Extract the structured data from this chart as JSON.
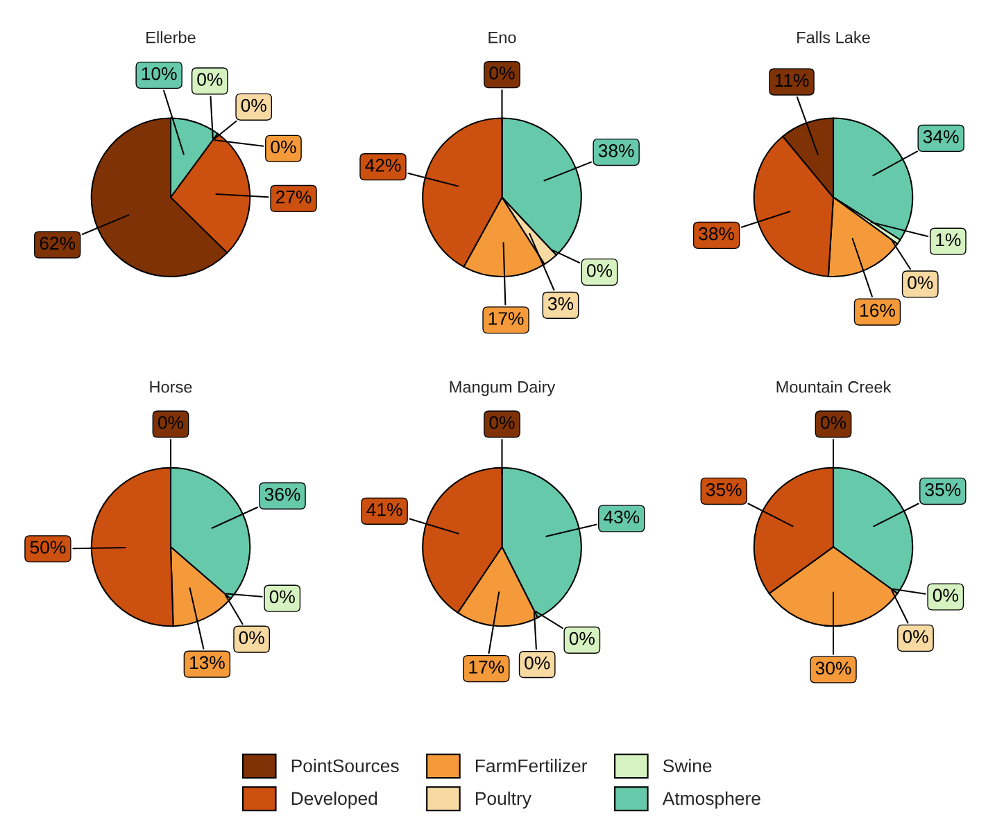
{
  "chart_data": [
    {
      "type": "pie",
      "title": "Ellerbe",
      "categories": [
        "Atmosphere",
        "Swine",
        "Poultry",
        "FarmFertilizer",
        "Developed",
        "PointSources"
      ],
      "values": [
        10,
        0,
        0,
        0,
        27,
        62
      ],
      "colors": [
        "#66c9aa",
        "#d6f2c0",
        "#f7d9a2",
        "#f59a3a",
        "#cc500f",
        "#7f3206"
      ],
      "value_labels": [
        "10%",
        "0%",
        "0%",
        "0%",
        "27%",
        "62%"
      ],
      "legend": "bottom"
    },
    {
      "type": "pie",
      "title": "Eno",
      "categories": [
        null,
        null,
        null,
        null,
        null,
        null
      ],
      "values": [
        38,
        0,
        3,
        17,
        42,
        0
      ],
      "colors": [
        "#66c9aa",
        "#d6f2c0",
        "#f7d9a2",
        "#f59a3a",
        "#cc500f",
        "#7f3206"
      ],
      "value_labels": [
        "38%",
        "0%",
        "3%",
        "17%",
        "42%",
        "0%"
      ]
    },
    {
      "type": "pie",
      "title": "Falls Lake",
      "categories": [
        null,
        null,
        null,
        null,
        null,
        null
      ],
      "values": [
        34,
        1,
        0,
        16,
        38,
        11
      ],
      "colors": [
        "#66c9aa",
        "#d6f2c0",
        "#f7d9a2",
        "#f59a3a",
        "#cc500f",
        "#7f3206"
      ],
      "value_labels": [
        "34%",
        "1%",
        "0%",
        "16%",
        "38%",
        "11%"
      ]
    },
    {
      "type": "pie",
      "title": "Horse",
      "categories": [
        null,
        null,
        null,
        null,
        null,
        null
      ],
      "values": [
        36,
        0,
        0,
        13,
        50,
        0
      ],
      "colors": [
        "#66c9aa",
        "#d6f2c0",
        "#f7d9a2",
        "#f59a3a",
        "#cc500f",
        "#7f3206"
      ],
      "value_labels": [
        "36%",
        "0%",
        "0%",
        "13%",
        "50%",
        "0%"
      ]
    },
    {
      "type": "pie",
      "title": "Mangum Dairy",
      "categories": [
        null,
        null,
        null,
        null,
        null,
        null
      ],
      "values": [
        43,
        0,
        0,
        17,
        41,
        0
      ],
      "colors": [
        "#66c9aa",
        "#d6f2c0",
        "#f7d9a2",
        "#f59a3a",
        "#cc500f",
        "#7f3206"
      ],
      "value_labels": [
        "43%",
        "0%",
        "0%",
        "17%",
        "41%",
        "0%"
      ]
    },
    {
      "type": "pie",
      "title": "Mountain Creek",
      "categories": [
        null,
        null,
        null,
        null,
        null,
        null
      ],
      "values": [
        35,
        0,
        0,
        30,
        35,
        0
      ],
      "colors": [
        "#66c9aa",
        "#d6f2c0",
        "#f7d9a2",
        "#f59a3a",
        "#cc500f",
        "#7f3206"
      ],
      "value_labels": [
        "35%",
        "0%",
        "0%",
        "30%",
        "35%",
        "0%"
      ]
    }
  ]
}
